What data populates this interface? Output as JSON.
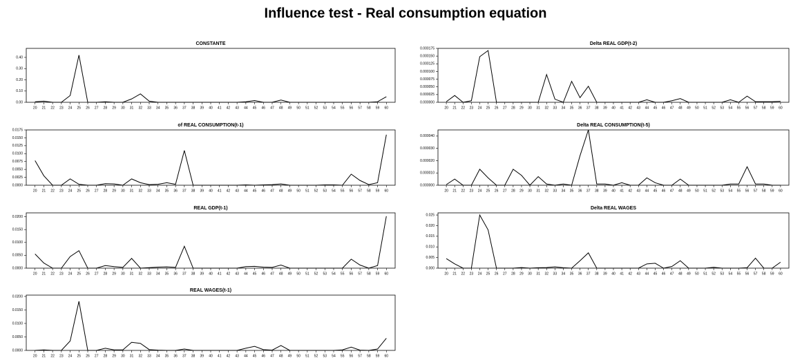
{
  "title": "Influence test - Real consumption equation",
  "chart_data": [
    {
      "type": "line",
      "title": "CONSTANTE",
      "x": [
        20,
        21,
        22,
        23,
        24,
        25,
        26,
        27,
        28,
        29,
        30,
        31,
        32,
        33,
        34,
        35,
        36,
        37,
        38,
        39,
        40,
        41,
        42,
        43,
        44,
        45,
        46,
        47,
        48,
        49,
        50,
        51,
        52,
        53,
        54,
        55,
        56,
        57,
        58,
        59,
        60
      ],
      "values": [
        0.005,
        0.01,
        0,
        0,
        0.06,
        0.42,
        0,
        0,
        0.005,
        0,
        0,
        0.03,
        0.075,
        0.01,
        0,
        0,
        0,
        0,
        0,
        0,
        0,
        0,
        0,
        0,
        0.005,
        0.015,
        0,
        0,
        0.02,
        0,
        0,
        0,
        0,
        0,
        0,
        0,
        0,
        0,
        0,
        0.005,
        0.05
      ],
      "color": "#000000",
      "xlim": [
        19,
        61
      ],
      "ylim": [
        0,
        0.48
      ],
      "yticks": [
        {
          "value": 0,
          "label": "0.00"
        },
        {
          "value": 0.1,
          "label": "0.10"
        },
        {
          "value": 0.2,
          "label": "0.20"
        },
        {
          "value": 0.3,
          "label": "0.30"
        },
        {
          "value": 0.4,
          "label": "0.40"
        }
      ]
    },
    {
      "type": "line",
      "title": "Delta REAL GDP(t-2)",
      "x": [
        20,
        21,
        22,
        23,
        24,
        25,
        26,
        27,
        28,
        29,
        30,
        31,
        32,
        33,
        34,
        35,
        36,
        37,
        38,
        39,
        40,
        41,
        42,
        43,
        44,
        45,
        46,
        47,
        48,
        49,
        50,
        51,
        52,
        53,
        54,
        55,
        56,
        57,
        58,
        59,
        60
      ],
      "values": [
        2e-06,
        2.2e-05,
        0,
        5e-06,
        0.000148,
        0.000168,
        0,
        0,
        0,
        0,
        0,
        0,
        9e-05,
        1e-05,
        0,
        6.8e-05,
        1.5e-05,
        5.2e-05,
        0,
        0,
        0,
        0,
        0,
        0,
        8e-06,
        0,
        0,
        5e-06,
        1.2e-05,
        0,
        0,
        0,
        0,
        0,
        8e-06,
        0,
        2e-05,
        2e-06,
        2e-06,
        2e-06,
        3e-06
      ],
      "color": "#000000",
      "xlim": [
        19,
        61
      ],
      "ylim": [
        0,
        0.000175
      ],
      "yticks": [
        {
          "value": 0,
          "label": "0.000000"
        },
        {
          "value": 2.5e-05,
          "label": "0.000025"
        },
        {
          "value": 5e-05,
          "label": "0.000050"
        },
        {
          "value": 7.5e-05,
          "label": "0.000075"
        },
        {
          "value": 0.0001,
          "label": "0.000100"
        },
        {
          "value": 0.000125,
          "label": "0.000125"
        },
        {
          "value": 0.00015,
          "label": "0.000150"
        },
        {
          "value": 0.000175,
          "label": "0.000175"
        }
      ]
    },
    {
      "type": "line",
      "title": "of REAL CONSUMPTION(t-1)",
      "x": [
        20,
        21,
        22,
        23,
        24,
        25,
        26,
        27,
        28,
        29,
        30,
        31,
        32,
        33,
        34,
        35,
        36,
        37,
        38,
        39,
        40,
        41,
        42,
        43,
        44,
        45,
        46,
        47,
        48,
        49,
        50,
        51,
        52,
        53,
        54,
        55,
        56,
        57,
        58,
        59,
        60
      ],
      "values": [
        0.0078,
        0.003,
        0,
        0,
        0.002,
        0.0003,
        0,
        0,
        0.0005,
        0.0004,
        0,
        0.002,
        0.0008,
        0.0002,
        0.0003,
        0.0008,
        0.0003,
        0.011,
        0,
        0,
        0,
        0,
        0,
        0,
        0.0001,
        0,
        0.0001,
        0.0002,
        0.0004,
        0,
        0,
        0,
        0,
        0.0001,
        0.0001,
        0,
        0.0035,
        0.0015,
        0.0002,
        0.0008,
        0.016
      ],
      "color": "#000000",
      "xlim": [
        19,
        61
      ],
      "ylim": [
        0,
        0.0175
      ],
      "yticks": [
        {
          "value": 0,
          "label": "0.0000"
        },
        {
          "value": 0.0025,
          "label": "0.0025"
        },
        {
          "value": 0.005,
          "label": "0.0050"
        },
        {
          "value": 0.0075,
          "label": "0.0075"
        },
        {
          "value": 0.01,
          "label": "0.0100"
        },
        {
          "value": 0.0125,
          "label": "0.0125"
        },
        {
          "value": 0.015,
          "label": "0.0150"
        },
        {
          "value": 0.0175,
          "label": "0.0175"
        }
      ]
    },
    {
      "type": "line",
      "title": "Delta REAL CONSUMPTION(t-5)",
      "x": [
        20,
        21,
        22,
        23,
        24,
        25,
        26,
        27,
        28,
        29,
        30,
        31,
        32,
        33,
        34,
        35,
        36,
        37,
        38,
        39,
        40,
        41,
        42,
        43,
        44,
        45,
        46,
        47,
        48,
        49,
        50,
        51,
        52,
        53,
        54,
        55,
        56,
        57,
        58,
        59,
        60
      ],
      "values": [
        5e-07,
        5e-06,
        0,
        0,
        1.3e-05,
        6e-06,
        0,
        0,
        1.3e-05,
        8e-06,
        0,
        7e-06,
        1e-06,
        0,
        1e-06,
        0,
        2.4e-05,
        4.5e-05,
        1e-06,
        1e-06,
        0,
        2e-06,
        0,
        0,
        6e-06,
        2e-06,
        0,
        0,
        5e-06,
        0,
        0,
        0,
        0,
        0,
        1e-06,
        1e-06,
        1.5e-05,
        1e-06,
        1e-06,
        0,
        0
      ],
      "color": "#000000",
      "xlim": [
        19,
        61
      ],
      "ylim": [
        0,
        4.5e-05
      ],
      "yticks": [
        {
          "value": 0,
          "label": "0.000000"
        },
        {
          "value": 1e-05,
          "label": "0.000010"
        },
        {
          "value": 2e-05,
          "label": "0.000020"
        },
        {
          "value": 3e-05,
          "label": "0.000030"
        },
        {
          "value": 4e-05,
          "label": "0.000040"
        }
      ]
    },
    {
      "type": "line",
      "title": "REAL GDP(t-1)",
      "x": [
        20,
        21,
        22,
        23,
        24,
        25,
        26,
        27,
        28,
        29,
        30,
        31,
        32,
        33,
        34,
        35,
        36,
        37,
        38,
        39,
        40,
        41,
        42,
        43,
        44,
        45,
        46,
        47,
        48,
        49,
        50,
        51,
        52,
        53,
        54,
        55,
        56,
        57,
        58,
        59,
        60
      ],
      "values": [
        0.0055,
        0.002,
        0,
        0,
        0.0045,
        0.0068,
        0,
        0,
        0.001,
        0.0006,
        0.0003,
        0.0038,
        0,
        0.0002,
        0.0004,
        0.0005,
        0.0003,
        0.0085,
        0,
        0,
        0,
        0,
        0,
        0,
        0.0006,
        0.0007,
        0.0004,
        0.0003,
        0.0012,
        0,
        0,
        0,
        0,
        0,
        0,
        0,
        0.0035,
        0.0012,
        0,
        0.001,
        0.0202
      ],
      "color": "#000000",
      "xlim": [
        19,
        61
      ],
      "ylim": [
        0,
        0.0215
      ],
      "yticks": [
        {
          "value": 0,
          "label": "0.0000"
        },
        {
          "value": 0.005,
          "label": "0.0050"
        },
        {
          "value": 0.01,
          "label": "0.0100"
        },
        {
          "value": 0.015,
          "label": "0.0150"
        },
        {
          "value": 0.02,
          "label": "0.0200"
        }
      ]
    },
    {
      "type": "line",
      "title": "Delta REAL WAGES",
      "x": [
        20,
        21,
        22,
        23,
        24,
        25,
        26,
        27,
        28,
        29,
        30,
        31,
        32,
        33,
        34,
        35,
        36,
        37,
        38,
        39,
        40,
        41,
        42,
        43,
        44,
        45,
        46,
        47,
        48,
        49,
        50,
        51,
        52,
        53,
        54,
        55,
        56,
        57,
        58,
        59,
        60
      ],
      "values": [
        0.0045,
        0.002,
        0,
        0,
        0.025,
        0.018,
        0,
        0,
        0,
        0.0003,
        0,
        0.0002,
        0.0003,
        0.0006,
        0.0002,
        0,
        0.0035,
        0.0072,
        0,
        0,
        0,
        0,
        0,
        0,
        0.002,
        0.0023,
        0,
        0.0008,
        0.0035,
        0,
        0,
        0,
        0.0004,
        0,
        0,
        0,
        0.0002,
        0.0047,
        0,
        0,
        0.0028
      ],
      "color": "#000000",
      "xlim": [
        19,
        61
      ],
      "ylim": [
        0,
        0.026
      ],
      "yticks": [
        {
          "value": 0,
          "label": "0.000"
        },
        {
          "value": 0.005,
          "label": "0.005"
        },
        {
          "value": 0.01,
          "label": "0.010"
        },
        {
          "value": 0.015,
          "label": "0.015"
        },
        {
          "value": 0.02,
          "label": "0.020"
        },
        {
          "value": 0.025,
          "label": "0.025"
        }
      ]
    },
    {
      "type": "line",
      "title": "REAL WAGES(t-1)",
      "x": [
        20,
        21,
        22,
        23,
        24,
        25,
        26,
        27,
        28,
        29,
        30,
        31,
        32,
        33,
        34,
        35,
        36,
        37,
        38,
        39,
        40,
        41,
        42,
        43,
        44,
        45,
        46,
        47,
        48,
        49,
        50,
        51,
        52,
        53,
        54,
        55,
        56,
        57,
        58,
        59,
        60
      ],
      "values": [
        0,
        0.0002,
        0,
        0,
        0.0035,
        0.0182,
        0,
        0,
        0.0008,
        0.0002,
        0.0002,
        0.003,
        0.0026,
        0.0003,
        0.0001,
        0,
        0,
        0.0005,
        0,
        0,
        0,
        0,
        0,
        0,
        0.0008,
        0.0015,
        0.0003,
        0.0001,
        0.0018,
        0,
        0,
        0,
        0,
        0,
        0,
        0.0002,
        0.0012,
        0.0001,
        0,
        0.0005,
        0.0045
      ],
      "color": "#000000",
      "xlim": [
        19,
        61
      ],
      "ylim": [
        0,
        0.0205
      ],
      "yticks": [
        {
          "value": 0,
          "label": "0.0000"
        },
        {
          "value": 0.005,
          "label": "0.0050"
        },
        {
          "value": 0.01,
          "label": "0.0100"
        },
        {
          "value": 0.015,
          "label": "0.0150"
        },
        {
          "value": 0.02,
          "label": "0.0200"
        }
      ]
    }
  ]
}
